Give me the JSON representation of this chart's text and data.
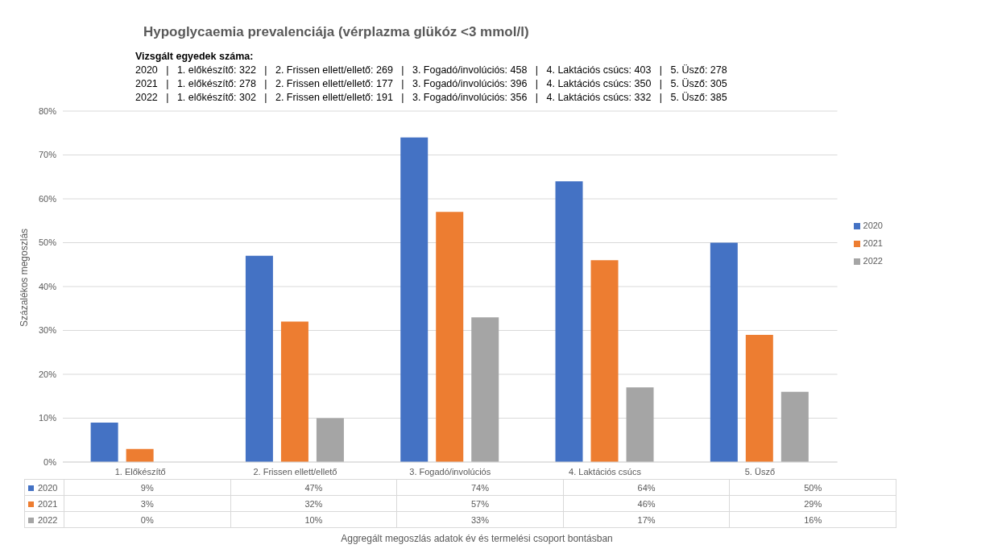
{
  "chart_data": {
    "type": "bar",
    "title": "Hypoglycaemia prevalenciája (vérplazma glükóz <3 mmol/l)",
    "annotations": [
      "Vizsgált egyedek száma:",
      "2020   |   1. előkészítő: 322   |   2. Frissen ellett/ellető: 269   |   3. Fogadó/involúciós: 458   |   4. Laktációs csúcs: 403   |   5. Üsző: 278",
      "2021   |   1. előkészítő: 278   |   2. Frissen ellett/ellető: 177   |   3. Fogadó/involúciós: 396   |   4. Laktációs csúcs: 350   |   5. Üsző: 305",
      "2022   |   1. előkészítő: 302   |   2. Frissen ellett/ellető: 191   |   3. Fogadó/involúciós: 356   |   4. Laktációs csúcs: 332   |   5. Üsző: 385",
      "Aggregált megoszlás adatok év és termelési csoport bontásban"
    ],
    "ylabel": "Százalékos megoszlás",
    "categories": [
      "1. Előkészítő",
      "2. Frissen ellett/ellető",
      "3. Fogadó/involúciós",
      "4. Laktációs csúcs",
      "5. Üsző"
    ],
    "series": [
      {
        "name": "2020",
        "color": "#4472c4",
        "values": [
          9,
          47,
          74,
          64,
          50
        ],
        "value_labels": [
          "9%",
          "47%",
          "74%",
          "64%",
          "50%"
        ]
      },
      {
        "name": "2021",
        "color": "#ed7d31",
        "values": [
          3,
          32,
          57,
          46,
          29
        ],
        "value_labels": [
          "3%",
          "32%",
          "57%",
          "46%",
          "29%"
        ]
      },
      {
        "name": "2022",
        "color": "#a5a5a5",
        "values": [
          0,
          10,
          33,
          17,
          16
        ],
        "value_labels": [
          "0%",
          "10%",
          "33%",
          "17%",
          "16%"
        ]
      }
    ],
    "ylim": [
      0,
      80
    ],
    "yticks": [
      {
        "value": 0,
        "label": "0%"
      },
      {
        "value": 10,
        "label": "10%"
      },
      {
        "value": 20,
        "label": "20%"
      },
      {
        "value": 30,
        "label": "30%"
      },
      {
        "value": 40,
        "label": "40%"
      },
      {
        "value": 50,
        "label": "50%"
      },
      {
        "value": 60,
        "label": "60%"
      },
      {
        "value": 70,
        "label": "70%"
      },
      {
        "value": 80,
        "label": "80%"
      }
    ],
    "grid": "y",
    "legend": "right"
  }
}
